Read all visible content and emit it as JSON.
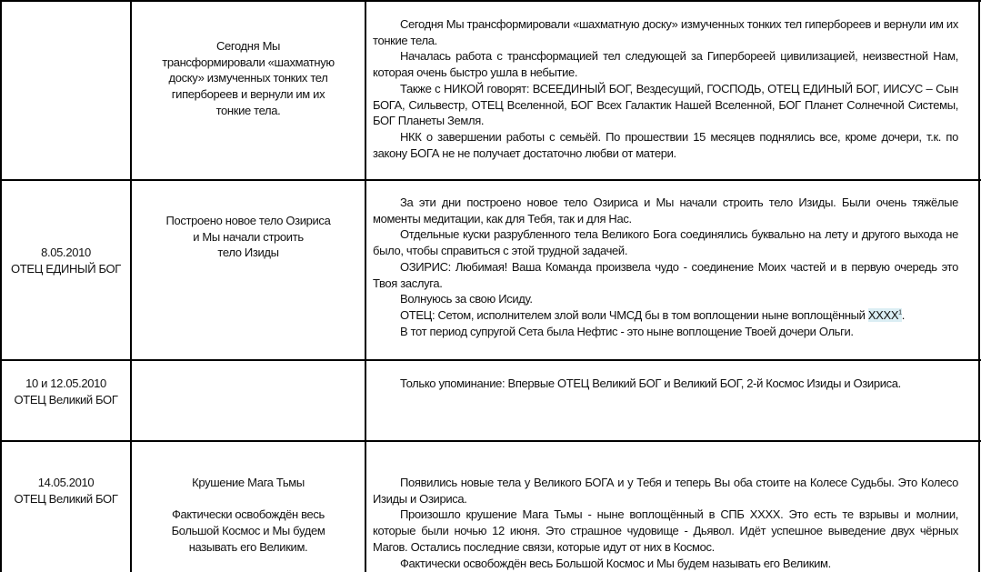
{
  "rows": [
    {
      "date": "",
      "author": "",
      "summary": [
        "Сегодня Мы",
        "трансформировали «шахматную",
        "доску» измученных тонких тел",
        "гиперборeев и вернули им их",
        "тонкие тела."
      ],
      "paragraphs": [
        "Сегодня Мы трансформировали «шахматную доску» измученных тонких тел гиперборeев и вернули им их тонкие тела.",
        "Началась работа с трансформацией тел следующей за Гипербореей цивилизацией, неизвестной Нам, которая очень быстро ушла в небытие.",
        "Также с НИКОЙ говорят: ВСЕЕДИНЫЙ БОГ, Вездесущий, ГОСПОДЬ, ОТЕЦ ЕДИНЫЙ  БОГ, ИИСУС – Сын БОГА, Сильвестр, ОТЕЦ Вселенной, БОГ Всех Галактик Нашей Вселенной, БОГ Планет Солнечной Системы, БОГ Планеты Земля.",
        "НКК  о завершении работы с семьёй. По прошествии 15 месяцев поднялись все, кроме дочери, т.к. по закону БОГА не не получает достаточно любви от матери."
      ]
    },
    {
      "date": "8.05.2010",
      "author": "ОТЕЦ  ЕДИНЫЙ  БОГ",
      "summary": [
        "Построено новое тело Озириса",
        "и Мы начали строить",
        "тело Изиды"
      ],
      "paragraphs": [
        "За эти дни построено новое тело Озириса и Мы начали строить тело Изиды. Были очень тяжёлые моменты медитации, как для Тебя, так и для Нас.",
        "Отдельные куски разрубленного тела Великого Бога соединялись буквально на лету и другого выхода не было, чтобы справиться с этой трудной задачей.",
        "ОЗИРИС: Любимая! Ваша Команда произвела чудо - соединение Моих частей и в первую очередь это Твоя заслуга.",
        "Волнуюсь за свою Исиду."
      ],
      "father_line": {
        "text": "ОТЕЦ: Сетом, исполнителем злой воли ЧМСД бы в том воплощении ныне воплощённый ",
        "highlight": "XXXX",
        "footnote": "1",
        "end": "."
      },
      "last_paragraph": "В тот период супругой Сета была Нефтис - это ныне воплощение Твоей дочери Ольги."
    },
    {
      "date": "10 и 12.05.2010",
      "author": "ОТЕЦ  Великий  БОГ",
      "summary": [],
      "paragraphs": [
        "Только упоминание: Впервые ОТЕЦ Великий БОГ и Великий БОГ,  2-й  Космос Изиды и Озириса."
      ]
    },
    {
      "date": "14.05.2010",
      "author": "ОТЕЦ  Великий  БОГ",
      "summary_title": "Крушение Мага Тьмы",
      "summary": [
        "Фактически освобождён весь",
        "Большой Космос и Мы будем",
        "называть его Великим."
      ],
      "paragraphs": [
        "Появились новые тела у Великого БОГА и  у Тебя и теперь Вы оба стоите на Колесе Судьбы. Это Колесо Изиды и Озириса.",
        "Произошло крушение Мага Тьмы - ныне воплощённый в СПБ XXXX. Это есть те взрывы и молнии, которые были ночью 12 июня. Это страшное чудовище - Дьявол. Идёт успешное выведение двух чёрных Магов. Остались последние связи, которые идут от них в Космос.",
        "Фактически освобождён весь Большой Космос и Мы будем называть его Великим."
      ]
    }
  ],
  "colors": {
    "highlight": "#dbeef4",
    "border": "#000000"
  }
}
